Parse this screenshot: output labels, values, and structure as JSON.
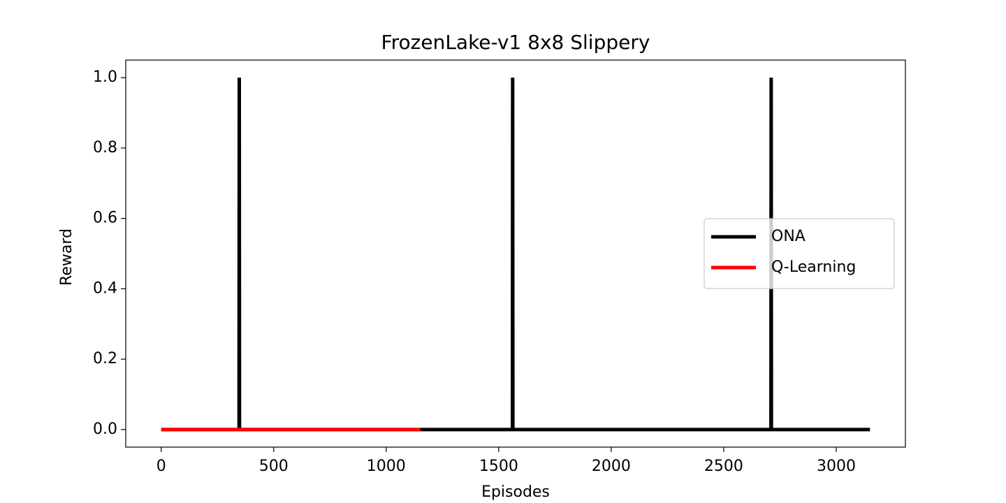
{
  "chart_data": {
    "type": "line",
    "title": "FrozenLake-v1 8x8 Slippery",
    "x_label": "Episodes",
    "y_label": "Reward",
    "xlim": [
      -157.5,
      3307.5
    ],
    "ylim": [
      -0.05,
      1.05
    ],
    "xticks": [
      0,
      500,
      1000,
      1500,
      2000,
      2500,
      3000
    ],
    "yticks": [
      {
        "value": 0,
        "label": "0.0"
      },
      {
        "value": 0.2,
        "label": "0.2"
      },
      {
        "value": 0.4,
        "label": "0.4"
      },
      {
        "value": 0.6,
        "label": "0.6"
      },
      {
        "value": 0.8,
        "label": "0.8"
      },
      {
        "value": 1,
        "label": "1.0"
      }
    ],
    "legend": "center right",
    "series": [
      {
        "name": "ONA",
        "color": "#000000",
        "x": [
          0,
          346,
          347,
          348,
          1561,
          1562,
          1563,
          2710,
          2711,
          2712,
          3150
        ],
        "values": [
          0,
          0,
          1,
          0,
          0,
          1,
          0,
          0,
          1,
          0,
          0
        ]
      },
      {
        "name": "Q-Learning",
        "color": "#ff0000",
        "x": [
          0,
          1152
        ],
        "values": [
          0,
          0
        ]
      }
    ]
  }
}
